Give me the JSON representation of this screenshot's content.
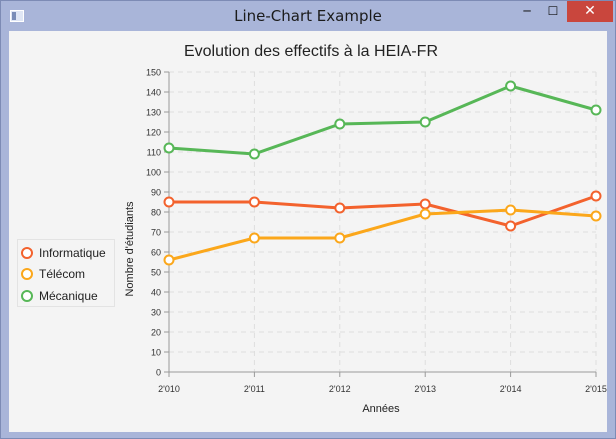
{
  "window": {
    "title": "Line-Chart Example",
    "minimize_glyph": "─",
    "maximize_glyph": "☐",
    "close_glyph": "✕"
  },
  "colors": {
    "informatique": "#f3622d",
    "telecom": "#fba71b",
    "mecanique": "#57b757",
    "titlebar": "#a9b5d9"
  },
  "chart_data": {
    "type": "line",
    "title": "Evolution des effectifs à la HEIA-FR",
    "xlabel": "Années",
    "ylabel": "Nombre d'étudiants",
    "categories": [
      "2'010",
      "2'011",
      "2'012",
      "2'013",
      "2'014",
      "2'015"
    ],
    "ylim": [
      0,
      150
    ],
    "yticks": [
      0,
      10,
      20,
      30,
      40,
      50,
      60,
      70,
      80,
      90,
      100,
      110,
      120,
      130,
      140,
      150
    ],
    "grid": true,
    "legend_position": "left",
    "series": [
      {
        "name": "Informatique",
        "color": "#f3622d",
        "values": [
          85,
          85,
          82,
          84,
          73,
          88
        ]
      },
      {
        "name": "Télécom",
        "color": "#fba71b",
        "values": [
          56,
          67,
          67,
          79,
          81,
          78
        ]
      },
      {
        "name": "Mécanique",
        "color": "#57b757",
        "values": [
          112,
          109,
          124,
          125,
          143,
          131
        ]
      }
    ]
  }
}
